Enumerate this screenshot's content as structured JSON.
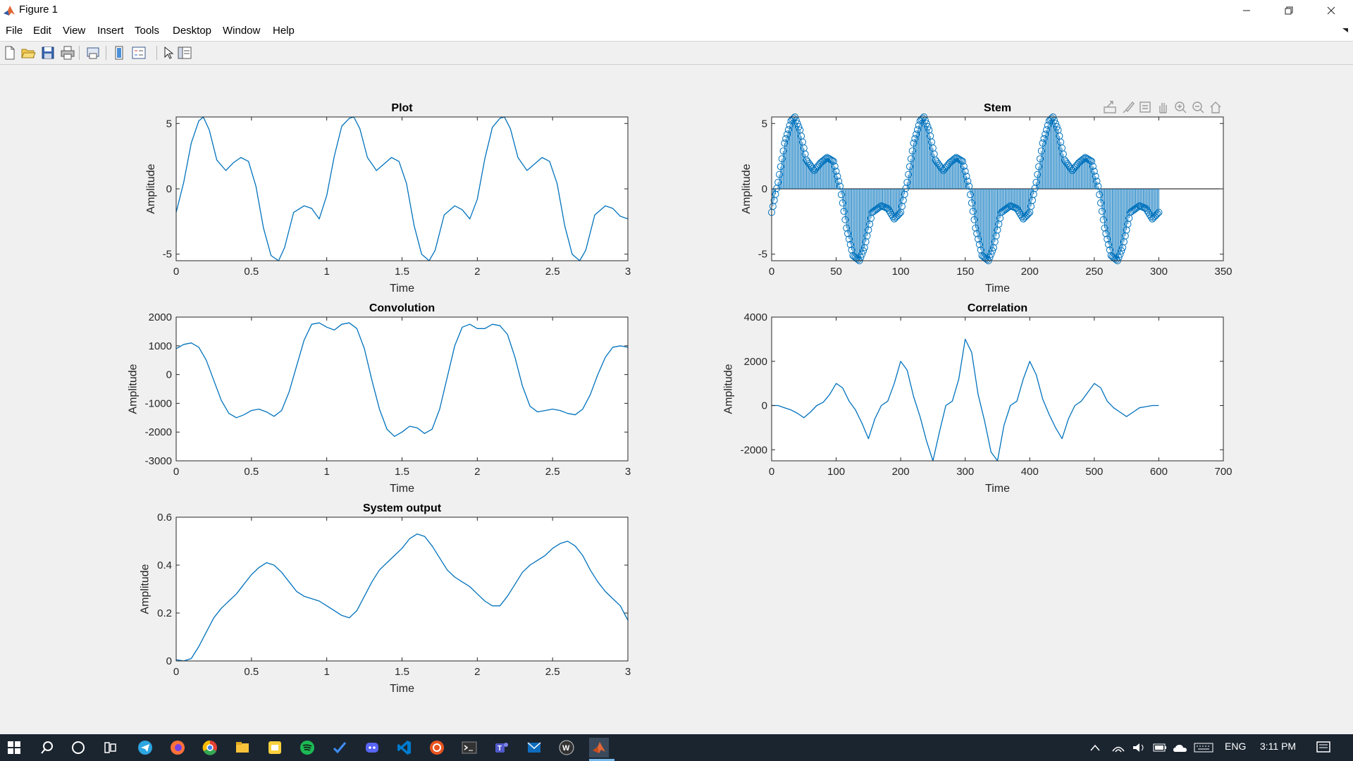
{
  "window": {
    "title": "Figure 1"
  },
  "menu": [
    "File",
    "Edit",
    "View",
    "Insert",
    "Tools",
    "Desktop",
    "Window",
    "Help"
  ],
  "toolbar_icons": [
    "new-figure-icon",
    "open-file-icon",
    "save-icon",
    "print-icon",
    "print-preview-icon",
    "colorbar-icon",
    "legend-icon",
    "edit-plot-arrow-icon",
    "property-inspector-icon"
  ],
  "axes_toolbar_icons": [
    "export-icon",
    "brush-icon",
    "data-tip-icon",
    "pan-icon",
    "zoom-in-icon",
    "zoom-out-icon",
    "home-icon"
  ],
  "colors": {
    "line": "#0072BD",
    "background": "#f0f0f0",
    "taskbar": "#1b2530"
  },
  "taskbar": {
    "time": "3:11 PM",
    "lang": "ENG",
    "apps": [
      "start-icon",
      "search-icon",
      "cortana-icon",
      "task-view-icon",
      "telegram-icon",
      "firefox-icon",
      "chrome-icon",
      "file-explorer-icon",
      "sticky-notes-icon",
      "spotify-icon",
      "todo-icon",
      "discord-icon",
      "vscode-icon",
      "ubuntu-icon",
      "terminal-icon",
      "teams-icon",
      "mail-icon",
      "wps-icon",
      "matlab-icon"
    ]
  },
  "chart_data": [
    {
      "type": "line",
      "title": "Plot",
      "xlabel": "Time",
      "ylabel": "Amplitude",
      "xlim": [
        0,
        3
      ],
      "ylim": [
        -5.5,
        5.5
      ],
      "xticks": [
        "0",
        "0.5",
        "1",
        "1.5",
        "2",
        "2.5",
        "3"
      ],
      "xtick_values": [
        0,
        0.5,
        1,
        1.5,
        2,
        2.5,
        3
      ],
      "yticks": [
        "-5",
        "0",
        "5"
      ],
      "ytick_values": [
        -5,
        0,
        5
      ],
      "series": [
        {
          "x": [
            0,
            0.05,
            0.1,
            0.15,
            0.18,
            0.22,
            0.27,
            0.33,
            0.38,
            0.43,
            0.48,
            0.53,
            0.58,
            0.63,
            0.68,
            0.72,
            0.78,
            0.85,
            0.9,
            0.95,
            1.0,
            1.05,
            1.1,
            1.15,
            1.18,
            1.22,
            1.27,
            1.33,
            1.38,
            1.43,
            1.48,
            1.53,
            1.58,
            1.63,
            1.68,
            1.72,
            1.78,
            1.85,
            1.9,
            1.95,
            2.0,
            2.05,
            2.1,
            2.15,
            2.18,
            2.22,
            2.27,
            2.33,
            2.38,
            2.43,
            2.48,
            2.53,
            2.58,
            2.63,
            2.68,
            2.72,
            2.78,
            2.85,
            2.9,
            2.95,
            3.0
          ],
          "y": [
            -1.8,
            0.5,
            3.5,
            5.2,
            5.5,
            4.5,
            2.2,
            1.4,
            2.0,
            2.4,
            2.1,
            0.2,
            -3.0,
            -5.1,
            -5.5,
            -4.5,
            -1.8,
            -1.3,
            -1.5,
            -2.3,
            -0.5,
            2.5,
            4.8,
            5.4,
            5.5,
            4.6,
            2.4,
            1.4,
            1.9,
            2.4,
            2.1,
            0.4,
            -2.8,
            -5.0,
            -5.5,
            -4.7,
            -2.0,
            -1.3,
            -1.6,
            -2.3,
            -0.8,
            2.3,
            4.7,
            5.4,
            5.5,
            4.6,
            2.4,
            1.4,
            1.9,
            2.4,
            2.1,
            0.4,
            -2.8,
            -5.0,
            -5.5,
            -4.7,
            -2.0,
            -1.3,
            -1.5,
            -2.1,
            -2.3
          ]
        }
      ]
    },
    {
      "type": "stem",
      "title": "Stem",
      "xlabel": "Time",
      "ylabel": "Amplitude",
      "xlim": [
        0,
        350
      ],
      "ylim": [
        -5.5,
        5.5
      ],
      "xticks": [
        "0",
        "50",
        "100",
        "150",
        "200",
        "250",
        "300",
        "350"
      ],
      "xtick_values": [
        0,
        50,
        100,
        150,
        200,
        250,
        300,
        350
      ],
      "yticks": [
        "-5",
        "0",
        "5"
      ],
      "ytick_values": [
        -5,
        0,
        5
      ],
      "n_points": 301,
      "period_samples": 100,
      "series": [
        {
          "x_one_period": [
            0,
            5,
            10,
            15,
            18,
            22,
            27,
            33,
            38,
            43,
            48,
            53,
            58,
            63,
            68,
            72,
            78,
            85,
            90,
            95,
            100
          ],
          "y_one_period": [
            -1.8,
            0.5,
            3.5,
            5.2,
            5.5,
            4.5,
            2.2,
            1.4,
            2.0,
            2.4,
            2.1,
            0.2,
            -3.0,
            -5.1,
            -5.5,
            -4.5,
            -1.8,
            -1.3,
            -1.5,
            -2.3,
            -1.8
          ]
        }
      ]
    },
    {
      "type": "line",
      "title": "Convolution",
      "xlabel": "Time",
      "ylabel": "Amplitude",
      "xlim": [
        0,
        3
      ],
      "ylim": [
        -3000,
        2000
      ],
      "xticks": [
        "0",
        "0.5",
        "1",
        "1.5",
        "2",
        "2.5",
        "3"
      ],
      "xtick_values": [
        0,
        0.5,
        1,
        1.5,
        2,
        2.5,
        3
      ],
      "yticks": [
        "-3000",
        "-2000",
        "-1000",
        "0",
        "1000",
        "2000"
      ],
      "ytick_values": [
        -3000,
        -2000,
        -1000,
        0,
        1000,
        2000
      ],
      "series": [
        {
          "x": [
            0,
            0.05,
            0.1,
            0.15,
            0.2,
            0.25,
            0.3,
            0.35,
            0.4,
            0.45,
            0.5,
            0.55,
            0.6,
            0.65,
            0.7,
            0.75,
            0.8,
            0.85,
            0.9,
            0.95,
            1.0,
            1.05,
            1.1,
            1.15,
            1.2,
            1.25,
            1.3,
            1.35,
            1.4,
            1.45,
            1.5,
            1.55,
            1.6,
            1.65,
            1.7,
            1.75,
            1.8,
            1.85,
            1.9,
            1.95,
            2.0,
            2.05,
            2.1,
            2.15,
            2.2,
            2.25,
            2.3,
            2.35,
            2.4,
            2.45,
            2.5,
            2.55,
            2.6,
            2.65,
            2.7,
            2.75,
            2.8,
            2.85,
            2.9,
            2.95,
            3.0
          ],
          "y": [
            900,
            1050,
            1100,
            950,
            500,
            -200,
            -900,
            -1350,
            -1500,
            -1400,
            -1250,
            -1200,
            -1300,
            -1450,
            -1250,
            -600,
            300,
            1200,
            1750,
            1800,
            1650,
            1550,
            1750,
            1800,
            1600,
            900,
            -200,
            -1200,
            -1900,
            -2150,
            -2000,
            -1800,
            -1850,
            -2050,
            -1900,
            -1200,
            -100,
            1000,
            1650,
            1750,
            1600,
            1600,
            1750,
            1700,
            1400,
            600,
            -400,
            -1100,
            -1300,
            -1250,
            -1200,
            -1250,
            -1350,
            -1400,
            -1200,
            -700,
            0,
            600,
            950,
            1000,
            950
          ]
        }
      ]
    },
    {
      "type": "line",
      "title": "Correlation",
      "xlabel": "Time",
      "ylabel": "Amplitude",
      "xlim": [
        0,
        700
      ],
      "ylim": [
        -2500,
        4000
      ],
      "xticks": [
        "0",
        "100",
        "200",
        "300",
        "400",
        "500",
        "600",
        "700"
      ],
      "xtick_values": [
        0,
        100,
        200,
        300,
        400,
        500,
        600,
        700
      ],
      "yticks": [
        "-2000",
        "0",
        "2000",
        "4000"
      ],
      "ytick_values": [
        -2000,
        0,
        2000,
        4000
      ],
      "series": [
        {
          "x": [
            0,
            10,
            20,
            30,
            40,
            50,
            60,
            70,
            80,
            90,
            100,
            110,
            120,
            130,
            140,
            150,
            160,
            170,
            180,
            190,
            200,
            210,
            220,
            230,
            240,
            250,
            260,
            270,
            280,
            290,
            300,
            310,
            320,
            330,
            340,
            350,
            360,
            370,
            380,
            390,
            400,
            410,
            420,
            430,
            440,
            450,
            460,
            470,
            480,
            490,
            500,
            510,
            520,
            530,
            540,
            550,
            560,
            570,
            580,
            590,
            600
          ],
          "y": [
            0,
            0,
            -100,
            -200,
            -350,
            -550,
            -300,
            0,
            150,
            500,
            1000,
            800,
            200,
            -200,
            -800,
            -1500,
            -600,
            0,
            200,
            1000,
            2000,
            1600,
            400,
            -500,
            -1600,
            -2500,
            -1200,
            0,
            200,
            1200,
            3000,
            2400,
            500,
            -700,
            -2100,
            -2500,
            -900,
            0,
            200,
            1200,
            2000,
            1400,
            300,
            -400,
            -1000,
            -1500,
            -600,
            0,
            200,
            600,
            1000,
            800,
            200,
            -100,
            -300,
            -500,
            -300,
            -100,
            -50,
            0,
            0
          ]
        }
      ]
    },
    {
      "type": "line",
      "title": "System output",
      "xlabel": "Time",
      "ylabel": "Amplitude",
      "xlim": [
        0,
        3
      ],
      "ylim": [
        0,
        0.6
      ],
      "xticks": [
        "0",
        "0.5",
        "1",
        "1.5",
        "2",
        "2.5",
        "3"
      ],
      "xtick_values": [
        0,
        0.5,
        1,
        1.5,
        2,
        2.5,
        3
      ],
      "yticks": [
        "0",
        "0.2",
        "0.4",
        "0.6"
      ],
      "ytick_values": [
        0,
        0.2,
        0.4,
        0.6
      ],
      "series": [
        {
          "x": [
            0,
            0.05,
            0.1,
            0.15,
            0.2,
            0.25,
            0.3,
            0.35,
            0.4,
            0.45,
            0.5,
            0.55,
            0.6,
            0.65,
            0.7,
            0.75,
            0.8,
            0.85,
            0.9,
            0.95,
            1.0,
            1.05,
            1.1,
            1.15,
            1.2,
            1.25,
            1.3,
            1.35,
            1.4,
            1.45,
            1.5,
            1.55,
            1.6,
            1.65,
            1.7,
            1.75,
            1.8,
            1.85,
            1.9,
            1.95,
            2.0,
            2.05,
            2.1,
            2.15,
            2.2,
            2.25,
            2.3,
            2.35,
            2.4,
            2.45,
            2.5,
            2.55,
            2.6,
            2.65,
            2.7,
            2.75,
            2.8,
            2.85,
            2.9,
            2.95,
            3.0
          ],
          "y": [
            0.005,
            0,
            0.01,
            0.06,
            0.12,
            0.18,
            0.22,
            0.25,
            0.28,
            0.32,
            0.36,
            0.39,
            0.41,
            0.4,
            0.37,
            0.33,
            0.29,
            0.27,
            0.26,
            0.25,
            0.23,
            0.21,
            0.19,
            0.18,
            0.21,
            0.27,
            0.33,
            0.38,
            0.41,
            0.44,
            0.47,
            0.51,
            0.53,
            0.52,
            0.48,
            0.43,
            0.38,
            0.35,
            0.33,
            0.31,
            0.28,
            0.25,
            0.23,
            0.23,
            0.27,
            0.32,
            0.37,
            0.4,
            0.42,
            0.44,
            0.47,
            0.49,
            0.5,
            0.48,
            0.44,
            0.38,
            0.33,
            0.29,
            0.26,
            0.23,
            0.17
          ]
        }
      ]
    }
  ]
}
